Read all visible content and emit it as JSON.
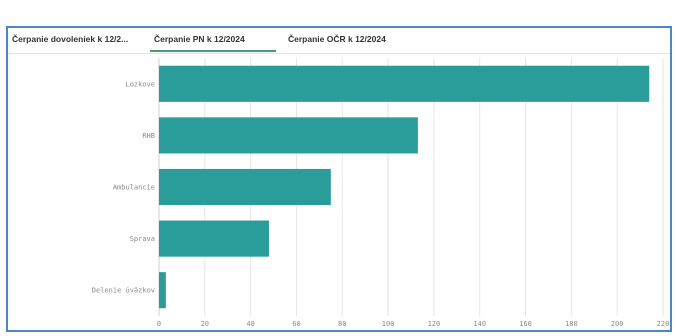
{
  "tabs": [
    {
      "label": "Čerpanie dovoleniek k 12/2...",
      "active": false
    },
    {
      "label": "Čerpanie PN k 12/2024",
      "active": true
    },
    {
      "label": "Čerpanie OČR k 12/2024",
      "active": false
    }
  ],
  "chart_data": {
    "type": "bar",
    "orientation": "horizontal",
    "categories": [
      "Lozkove",
      "RHB",
      "Ambulancie",
      "Sprava",
      "Delenie úväzkov"
    ],
    "values": [
      214,
      113,
      75,
      48,
      3
    ],
    "xlim": [
      0,
      220
    ],
    "xticks": [
      0,
      20,
      40,
      60,
      80,
      100,
      120,
      140,
      160,
      180,
      200,
      220
    ],
    "grid": true,
    "bar_color": "#2a9d9a"
  },
  "colors": {
    "frame_border": "#4a86c8",
    "active_tab_underline": "#3fa06b",
    "grid": "#e6e6e6"
  }
}
